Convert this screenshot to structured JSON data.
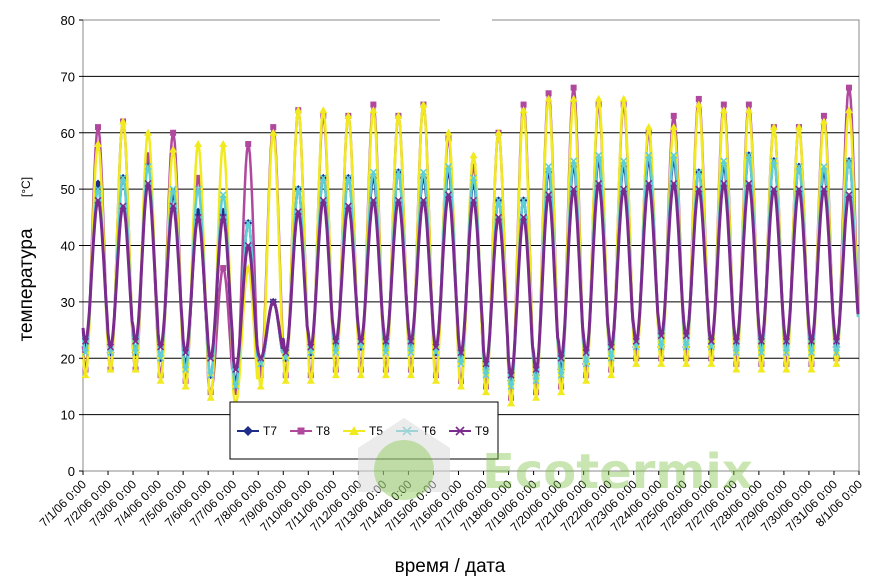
{
  "chart_data": {
    "type": "line",
    "xlabel": "время / дата",
    "ylabel": "температура",
    "yunit": "[°C]",
    "ylim": [
      0,
      80
    ],
    "yticks": [
      0,
      10,
      20,
      30,
      40,
      50,
      60,
      70,
      80
    ],
    "xlim": [
      "7/1/06 0:00",
      "8/1/06 0:00"
    ],
    "grid": "horizontal",
    "legend_position": "bottom-left inside plot",
    "x_tick_labels": [
      "7/1/06 0:00",
      "7/2/06 0:00",
      "7/3/06 0:00",
      "7/4/06 0:00",
      "7/5/06 0:00",
      "7/6/06 0:00",
      "7/7/06 0:00",
      "7/8/06 0:00",
      "7/9/06 0:00",
      "7/10/06 0:00",
      "7/11/06 0:00",
      "7/12/06 0:00",
      "7/13/06 0:00",
      "7/14/06 0:00",
      "7/15/06 0:00",
      "7/16/06 0:00",
      "7/17/06 0:00",
      "7/18/06 0:00",
      "7/19/06 0:00",
      "7/20/06 0:00",
      "7/21/06 0:00",
      "7/22/06 0:00",
      "7/23/06 0:00",
      "7/24/06 0:00",
      "7/25/06 0:00",
      "7/26/06 0:00",
      "7/27/06 0:00",
      "7/28/06 0:00",
      "7/29/06 0:00",
      "7/30/06 0:00",
      "7/31/06 0:00",
      "8/1/06 0:00"
    ],
    "day_dates": [
      "7/1/06",
      "7/2/06",
      "7/3/06",
      "7/4/06",
      "7/5/06",
      "7/6/06",
      "7/7/06",
      "7/8/06",
      "7/9/06",
      "7/10/06",
      "7/11/06",
      "7/12/06",
      "7/13/06",
      "7/14/06",
      "7/15/06",
      "7/16/06",
      "7/17/06",
      "7/18/06",
      "7/19/06",
      "7/20/06",
      "7/21/06",
      "7/22/06",
      "7/23/06",
      "7/24/06",
      "7/25/06",
      "7/26/06",
      "7/27/06",
      "7/28/06",
      "7/29/06",
      "7/30/06",
      "7/31/06"
    ],
    "series": [
      {
        "name": "T7",
        "color": "#1f2d8a",
        "marker": "diamond",
        "daily_max": [
          51,
          52,
          55,
          49,
          46,
          46,
          44,
          30,
          50,
          52,
          52,
          52,
          53,
          52,
          53,
          51,
          48,
          48,
          53,
          54,
          55,
          54,
          55,
          55,
          53,
          54,
          56,
          55,
          54,
          53,
          55
        ],
        "daily_min": [
          22,
          21,
          21,
          20,
          19,
          17,
          16,
          19,
          20,
          21,
          22,
          22,
          22,
          22,
          21,
          20,
          18,
          16,
          17,
          18,
          19,
          20,
          22,
          22,
          22,
          22,
          22,
          22,
          22,
          22,
          22
        ]
      },
      {
        "name": "T8",
        "color": "#b0489e",
        "marker": "square",
        "daily_max": [
          61,
          62,
          56,
          60,
          52,
          36,
          58,
          61,
          64,
          63,
          63,
          65,
          63,
          65,
          59,
          54,
          60,
          65,
          67,
          68,
          65,
          65,
          60,
          63,
          66,
          65,
          65,
          61,
          61,
          63,
          68
        ],
        "daily_min": [
          18,
          18,
          18,
          17,
          16,
          14,
          14,
          17,
          17,
          17,
          18,
          18,
          18,
          18,
          17,
          16,
          15,
          13,
          14,
          15,
          17,
          18,
          20,
          20,
          20,
          20,
          19,
          19,
          19,
          19,
          20
        ]
      },
      {
        "name": "T5",
        "color": "#f0ea1e",
        "marker": "triangle",
        "daily_max": [
          58,
          62,
          60,
          57,
          58,
          58,
          36,
          60,
          64,
          64,
          63,
          64,
          63,
          65,
          60,
          56,
          60,
          64,
          66,
          66,
          66,
          66,
          61,
          61,
          65,
          64,
          64,
          61,
          61,
          62,
          64
        ],
        "daily_min": [
          17,
          18,
          18,
          16,
          15,
          13,
          12,
          15,
          16,
          16,
          17,
          17,
          17,
          17,
          16,
          15,
          14,
          12,
          13,
          14,
          16,
          17,
          19,
          19,
          19,
          19,
          18,
          18,
          18,
          18,
          19
        ]
      },
      {
        "name": "T6",
        "color": "#5fcfd6",
        "marker": "x",
        "daily_max": [
          50,
          52,
          54,
          50,
          50,
          49,
          44,
          30,
          50,
          52,
          52,
          53,
          53,
          53,
          54,
          52,
          48,
          48,
          54,
          55,
          56,
          55,
          56,
          56,
          53,
          55,
          56,
          55,
          54,
          54,
          55
        ],
        "daily_min": [
          21,
          21,
          21,
          20,
          18,
          17,
          15,
          19,
          20,
          21,
          21,
          22,
          21,
          21,
          21,
          19,
          17,
          15,
          16,
          17,
          19,
          20,
          22,
          22,
          22,
          22,
          21,
          21,
          21,
          21,
          21
        ]
      },
      {
        "name": "T9",
        "color": "#7b2b8e",
        "marker": "star",
        "daily_max": [
          48,
          47,
          51,
          47,
          45,
          45,
          40,
          30,
          46,
          48,
          47,
          48,
          48,
          48,
          49,
          48,
          45,
          45,
          49,
          50,
          51,
          50,
          51,
          51,
          50,
          51,
          51,
          50,
          50,
          50,
          49
        ],
        "daily_min": [
          23,
          22,
          23,
          22,
          21,
          20,
          18,
          20,
          21,
          22,
          23,
          23,
          23,
          23,
          22,
          21,
          19,
          17,
          18,
          20,
          21,
          22,
          23,
          24,
          24,
          23,
          23,
          23,
          23,
          23,
          23
        ]
      }
    ]
  },
  "watermark": {
    "text": "Ecotermix",
    "color": "#7cc242",
    "icon": "house-logo-icon"
  }
}
